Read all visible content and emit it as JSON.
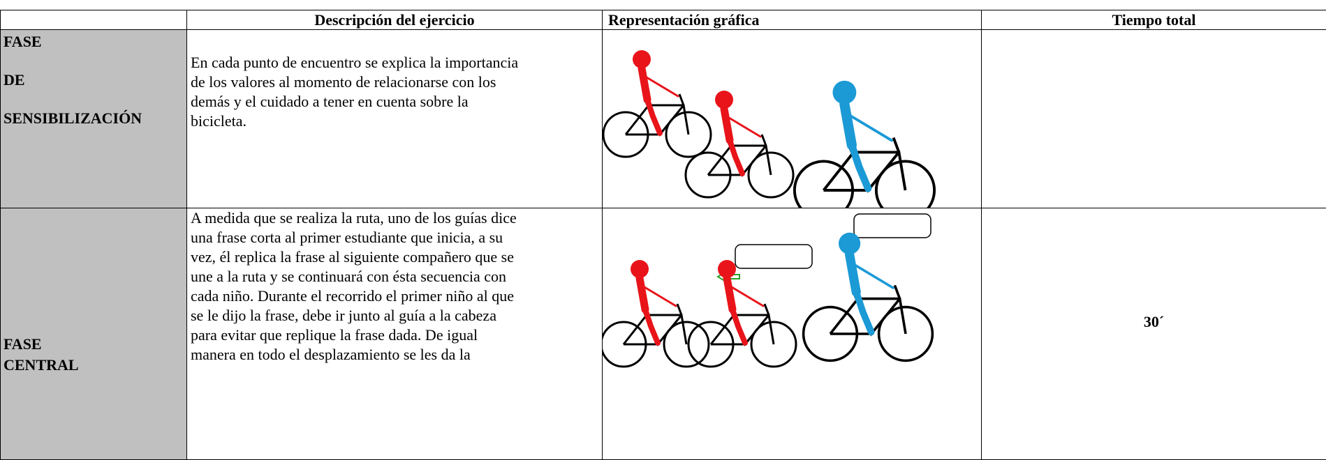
{
  "table": {
    "header": [
      "Descripción del ejercicio",
      "Representación gráfica",
      "Tiempo total"
    ],
    "rows": [
      {
        "phase": [
          "FASE",
          "DE",
          "SENSIBILIZACIÓN"
        ],
        "description": [
          "En cada punto de encuentro se explica la importancia",
          "de los valores al momento de relacionarse con los",
          "demás y el cuidado a tener en cuenta sobre la",
          "bicicleta."
        ]
      },
      {
        "phase": [
          "FASE",
          "CENTRAL"
        ],
        "description": [
          "A medida que se realiza la ruta, uno de los guías dice",
          "una frase corta al primer estudiante que inicia, a su",
          "vez, él replica la frase al siguiente compañero que se",
          "une a la ruta y se continuará con ésta secuencia con",
          "cada niño. Durante el recorrido el primer niño al que",
          "se le dijo la frase, debe ir junto al guía a la cabeza",
          "para evitar que replique la frase dada. De igual",
          "manera en todo el desplazamiento se les da la"
        ],
        "time": "30´"
      }
    ]
  }
}
